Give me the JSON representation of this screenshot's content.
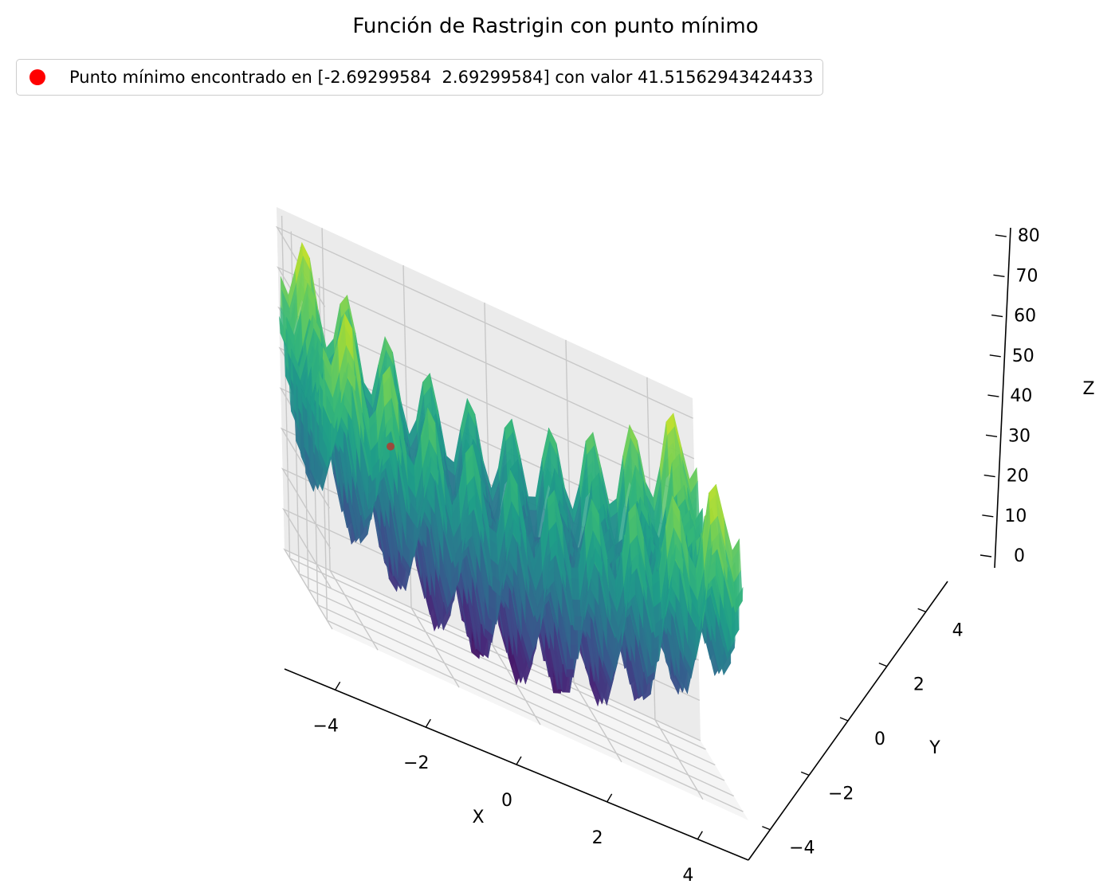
{
  "chart_data": {
    "type": "surface3d",
    "title": "Función de Rastrigin con punto mínimo",
    "xlabel": "X",
    "ylabel": "Y",
    "zlabel": "Z",
    "xlim": [
      -5.12,
      5.12
    ],
    "ylim": [
      -5.12,
      5.12
    ],
    "zlim": [
      0,
      85
    ],
    "x_ticks": [
      "−4",
      "−2",
      "0",
      "2",
      "4"
    ],
    "x_tick_values": [
      -4,
      -2,
      0,
      2,
      4
    ],
    "y_ticks": [
      "−4",
      "−2",
      "0",
      "2",
      "4"
    ],
    "y_tick_values": [
      -4,
      -2,
      0,
      2,
      4
    ],
    "z_ticks": [
      "0",
      "10",
      "20",
      "30",
      "40",
      "50",
      "60",
      "70",
      "80"
    ],
    "z_tick_values": [
      0,
      10,
      20,
      30,
      40,
      50,
      60,
      70,
      80
    ],
    "function": "Rastrigin",
    "colormap": "viridis",
    "grid": true,
    "legend_position": "top-left",
    "legend": [
      {
        "label": "Punto mínimo encontrado en [-2.69299584  2.69299584] con valor 41.51562943424433",
        "color": "#ff0000"
      }
    ],
    "point": {
      "x": -2.69299584,
      "y": 2.69299584,
      "z": 41.51562943424433
    }
  }
}
